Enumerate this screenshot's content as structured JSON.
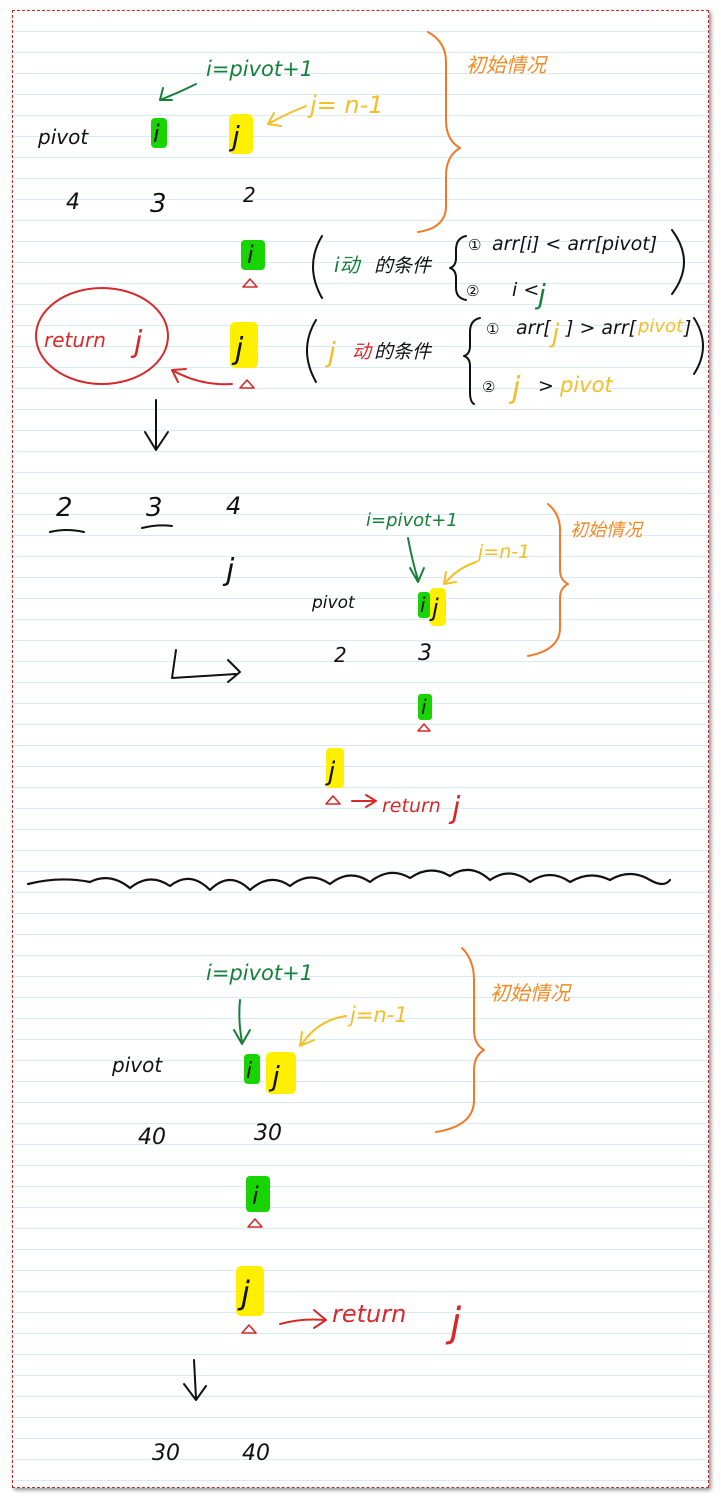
{
  "section1": {
    "i_label": "i=pivot+1",
    "j_label": "j= n-1",
    "pivot_label": "pivot",
    "init_label": "初始情况",
    "marker_i": "i",
    "marker_j": "j",
    "values": [
      "4",
      "3",
      "2"
    ],
    "cond_i": {
      "prefix": "i动",
      "suffix": "的条件",
      "c1_num": "①",
      "c1": "arr[i] < arr[pivot]",
      "c2_num": "②",
      "c2_left": "i <",
      "c2_right": "j"
    },
    "cond_j": {
      "prefix": "j",
      "prefix2": "动",
      "suffix": "的条件",
      "c1_num": "①",
      "c1_left": "arr[",
      "c1_j": "j",
      "c1_mid": "] > arr[",
      "c1_pivot": "pivot",
      "c1_end": "]",
      "c2_num": "②",
      "c2_j": "j",
      "c2_gt": ">",
      "c2_pivot": "pivot"
    },
    "return_label": "return",
    "return_var": "j",
    "after_values": [
      "2",
      "3",
      "4"
    ],
    "after_j": "j"
  },
  "section2": {
    "i_label": "i=pivot+1",
    "j_label": "j=n-1",
    "init_label": "初始情况",
    "pivot_label": "pivot",
    "values": [
      "2",
      "3"
    ],
    "return_label": "return",
    "return_var": "j"
  },
  "section3": {
    "i_label": "i=pivot+1",
    "j_label": "j=n-1",
    "init_label": "初始情况",
    "pivot_label": "pivot",
    "values": [
      "40",
      "30"
    ],
    "return_label": "return",
    "return_var": "j",
    "after_values": [
      "30",
      "40"
    ]
  },
  "colors": {
    "ink": "#111111",
    "green": "#16803a",
    "orange": "#f2792a",
    "red": "#d62a2a",
    "yellow": "#f2bf24",
    "highlight_green": "#18d400",
    "highlight_yellow": "#fff000",
    "page_border": "#b7312b",
    "rule_lines": "#d7eaf5"
  }
}
